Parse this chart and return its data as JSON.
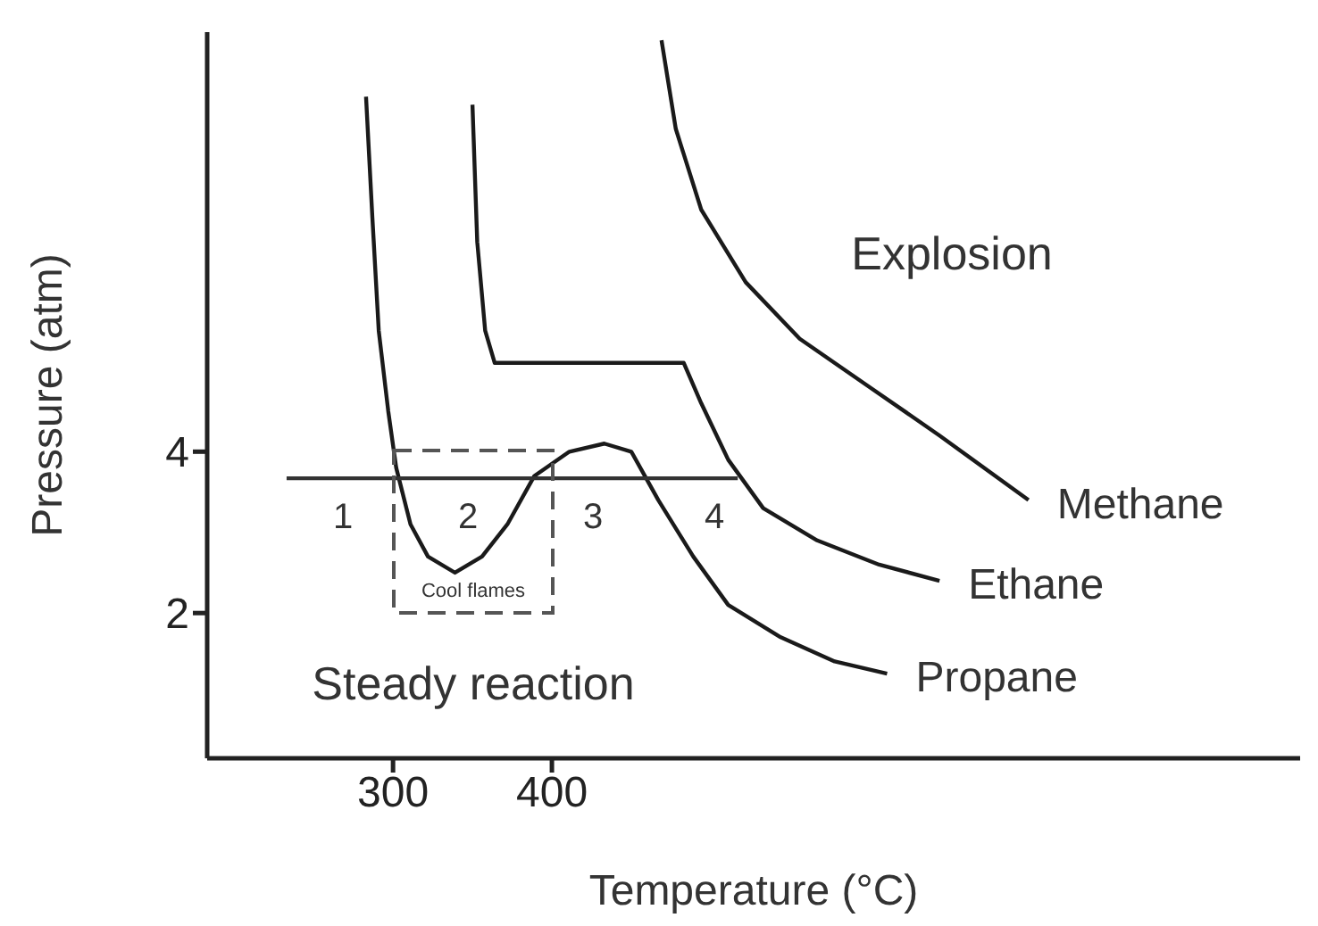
{
  "chart_data": {
    "type": "line",
    "xlabel": "Temperature (°C)",
    "ylabel": "Pressure (atm)",
    "xlim": [
      183,
      871
    ],
    "xticks": [
      300,
      400
    ],
    "ylim": [
      0.2,
      9.2
    ],
    "yticks": [
      2,
      4
    ],
    "grid": false,
    "legend": false,
    "marker": "none",
    "series": [
      {
        "name": "Methane",
        "color": "#1a1a1a",
        "x": [
          469,
          478,
          494,
          522,
          556,
          600,
          644,
          700
        ],
        "values": [
          9.1,
          8.0,
          7.0,
          6.1,
          5.4,
          4.8,
          4.2,
          3.4
        ]
      },
      {
        "name": "Ethane",
        "color": "#1a1a1a",
        "x": [
          350,
          353,
          358,
          364,
          383,
          483,
          494,
          511,
          533,
          567,
          606,
          644
        ],
        "values": [
          8.3,
          6.6,
          5.5,
          5.1,
          5.1,
          5.1,
          4.6,
          3.9,
          3.3,
          2.9,
          2.6,
          2.4
        ]
      },
      {
        "name": "Propane",
        "color": "#1a1a1a",
        "x": [
          283,
          287,
          291,
          297,
          302,
          311,
          322,
          339,
          356,
          372,
          389,
          411,
          433,
          450,
          467,
          489,
          511,
          544,
          578,
          611
        ],
        "values": [
          8.4,
          6.9,
          5.5,
          4.5,
          3.8,
          3.1,
          2.7,
          2.5,
          2.7,
          3.1,
          3.7,
          4.0,
          4.1,
          4.0,
          3.4,
          2.7,
          2.1,
          1.7,
          1.4,
          1.25
        ]
      },
      {
        "color": "#333333",
        "x": [
          233,
          517
        ],
        "values": [
          3.67,
          3.67
        ]
      }
    ],
    "annotations": [
      "Explosion",
      "Steady reaction",
      "Cool flames",
      "1",
      "2",
      "3",
      "4"
    ]
  }
}
